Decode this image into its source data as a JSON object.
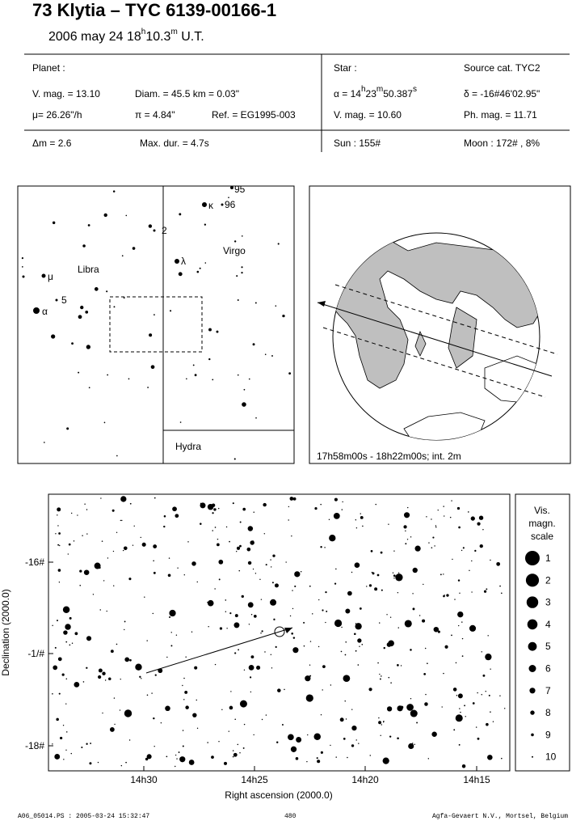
{
  "header": {
    "title": "73 Klytia   –  TYC 6139-00166-1",
    "date": "2006 may 24  18",
    "date_h": "h",
    "date_min": "10.3",
    "date_m": "m",
    "date_ut": " U.T."
  },
  "info": {
    "planet_label": "Planet :",
    "planet_vmag": "V. mag. = 13.10",
    "diam": "Diam. = 45.5 km = 0.03\"",
    "mu": "μ=  26.26\"/h",
    "pi": "π = 4.84\"",
    "ref": "Ref. = EG1995-003",
    "star_label": "Star :",
    "source": "Source cat.  TYC2",
    "alpha": "α = 14",
    "alpha_h": "h",
    "alpha_min": "23",
    "alpha_m": "m",
    "alpha_sec": "50.387",
    "alpha_s": "s",
    "delta": "δ = -16#46'02.95\"",
    "star_vmag": "V. mag. = 10.60",
    "phmag": "Ph. mag. = 11.71",
    "dm": "Δm = 2.6",
    "maxdur": "Max. dur. = 4.7s",
    "sun": "Sun : 155#",
    "moon": "Moon : 172# ,  8%"
  },
  "finder": {
    "labels": [
      "95",
      "κ",
      "96",
      "2",
      "λ",
      "μ",
      "5",
      "α"
    ],
    "constellations": [
      "Libra",
      "Virgo",
      "Hydra"
    ]
  },
  "globe": {
    "caption": "17h58m00s - 18h22m00s; int.  2m"
  },
  "starchart": {
    "yticks": [
      "-16#",
      "-1/#",
      "-18#"
    ],
    "xticks": [
      "14h30",
      "14h25",
      "14h20",
      "14h15"
    ],
    "xlabel": "Right ascension (2000.0)",
    "ylabel": "Declination (2000.0)",
    "legend_title": [
      "Vis.",
      "magn.",
      "scale"
    ],
    "legend_values": [
      1,
      2,
      3,
      4,
      5,
      6,
      7,
      8,
      9,
      10
    ]
  },
  "footer": {
    "file": "A06_05014.PS : 2005-03-24 15:32:47",
    "page": "480",
    "credit": "Agfa-Gevaert N.V., Mortsel, Belgium"
  }
}
